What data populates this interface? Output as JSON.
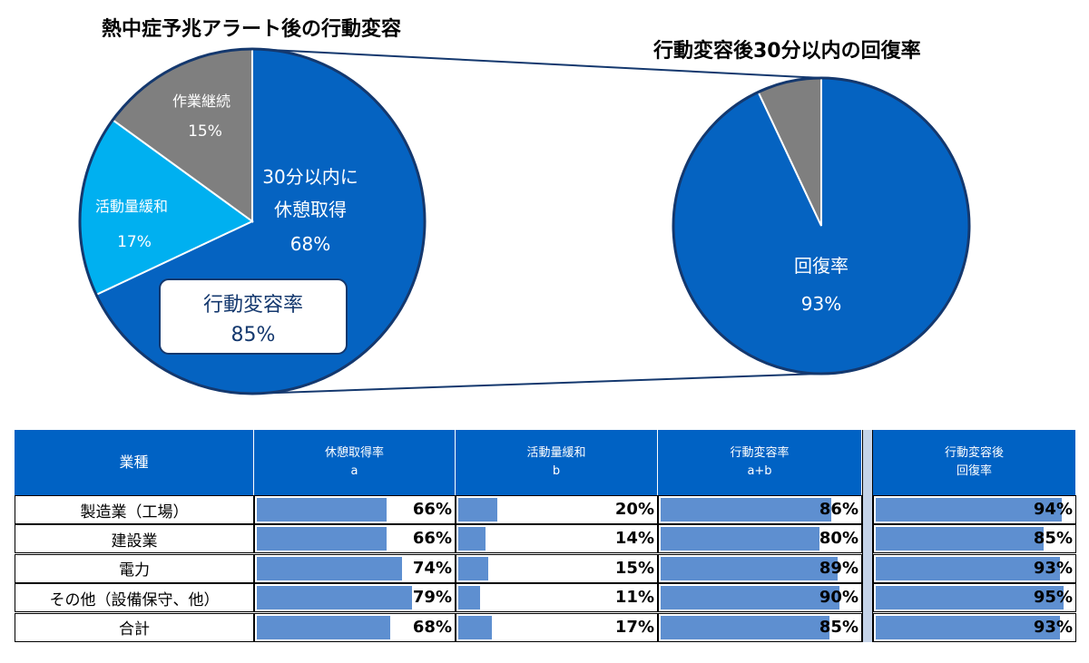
{
  "chart_data": [
    {
      "type": "pie",
      "title": "熱中症予兆アラート後の行動変容",
      "slices": [
        {
          "name": "30分以内に\n休憩取得",
          "value": 68,
          "label": "68%",
          "color": "#0563c1"
        },
        {
          "name": "活動量緩和",
          "value": 17,
          "label": "17%",
          "color": "#00b0f0"
        },
        {
          "name": "作業継続",
          "value": 15,
          "label": "15%",
          "color": "#7f7f7f"
        }
      ],
      "callout": {
        "label": "行動変容率",
        "value": "85%"
      }
    },
    {
      "type": "pie",
      "title": "行動変容後30分以内の回復率",
      "slices": [
        {
          "name": "回復率",
          "value": 93,
          "label": "93%",
          "color": "#0563c1"
        },
        {
          "name": "",
          "value": 7,
          "label": "",
          "color": "#7f7f7f"
        }
      ]
    },
    {
      "type": "table",
      "columns": [
        {
          "label": "業種",
          "sub": ""
        },
        {
          "label": "休憩取得率",
          "sub": "a"
        },
        {
          "label": "活動量緩和",
          "sub": "b"
        },
        {
          "label": "行動変容率",
          "sub": "a+b"
        },
        {
          "label": "行動変容後",
          "sub": "回復率"
        }
      ],
      "rows": [
        {
          "industry": "製造業（工場）",
          "values": [
            66,
            20,
            86,
            94
          ],
          "labels": [
            "66%",
            "20%",
            "86%",
            "94%"
          ]
        },
        {
          "industry": "建設業",
          "values": [
            66,
            14,
            80,
            85
          ],
          "labels": [
            "66%",
            "14%",
            "80%",
            "85%"
          ]
        },
        {
          "industry": "電力",
          "values": [
            74,
            15,
            89,
            93
          ],
          "labels": [
            "74%",
            "15%",
            "89%",
            "93%"
          ]
        },
        {
          "industry": "その他（設備保守、他）",
          "values": [
            79,
            11,
            90,
            95
          ],
          "labels": [
            "79%",
            "11%",
            "90%",
            "95%"
          ]
        },
        {
          "industry": "合計",
          "values": [
            68,
            17,
            85,
            93
          ],
          "labels": [
            "68%",
            "17%",
            "85%",
            "93%"
          ]
        }
      ]
    }
  ]
}
